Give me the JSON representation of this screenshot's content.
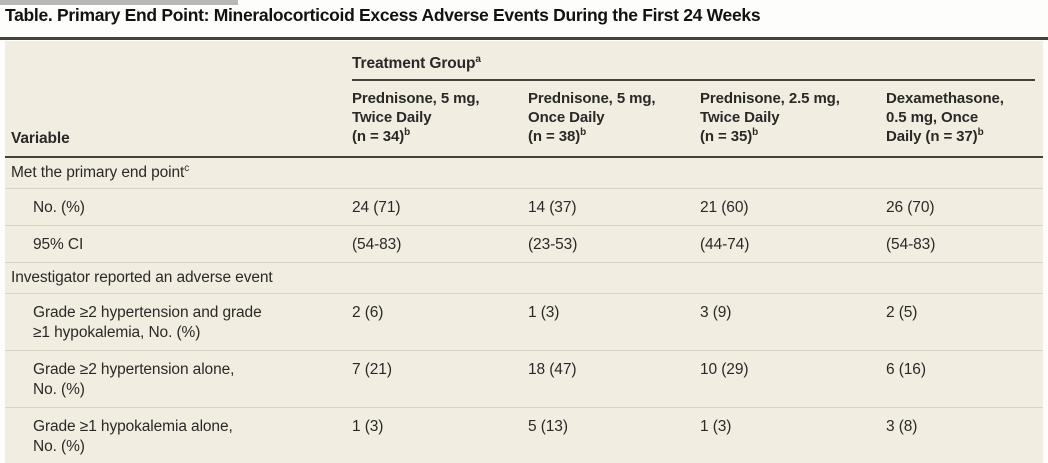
{
  "title": "Table. Primary End Point: Mineralocorticoid Excess Adverse Events During the First 24 Weeks",
  "table": {
    "variable_header": "Variable",
    "group_header": {
      "label": "Treatment Group",
      "superscript": "a"
    },
    "columns": [
      {
        "lines": [
          "Prednisone, 5 mg,",
          "Twice Daily",
          "(n = 34)"
        ],
        "superscript": "b"
      },
      {
        "lines": [
          "Prednisone, 5 mg,",
          "Once Daily",
          "(n = 38)"
        ],
        "superscript": "b"
      },
      {
        "lines": [
          "Prednisone, 2.5 mg,",
          "Twice Daily",
          "(n = 35)"
        ],
        "superscript": "b"
      },
      {
        "lines": [
          "Dexamethasone,",
          "0.5 mg, Once",
          "Daily (n = 37)"
        ],
        "superscript": "b"
      }
    ],
    "sections": [
      {
        "header": "Met the primary end point",
        "superscript": "c",
        "rows": [
          {
            "label_lines": [
              "No. (%)"
            ],
            "values": [
              "24 (71)",
              "14 (37)",
              "21 (60)",
              "26 (70)"
            ]
          },
          {
            "label_lines": [
              "95% CI"
            ],
            "values": [
              "(54-83)",
              "(23-53)",
              "(44-74)",
              "(54-83)"
            ]
          }
        ]
      },
      {
        "header": "Investigator reported an adverse event",
        "superscript": "",
        "rows": [
          {
            "label_lines": [
              "Grade ≥2 hypertension and grade",
              "≥1 hypokalemia, No. (%)"
            ],
            "values": [
              "2 (6)",
              "1 (3)",
              "3 (9)",
              "2 (5)"
            ]
          },
          {
            "label_lines": [
              "Grade ≥2 hypertension alone,",
              "No. (%)"
            ],
            "values": [
              "7 (21)",
              "18 (47)",
              "10 (29)",
              "6 (16)"
            ]
          },
          {
            "label_lines": [
              "Grade ≥1 hypokalemia alone,",
              "No. (%)"
            ],
            "values": [
              "1 (3)",
              "5 (13)",
              "1 (3)",
              "3 (8)"
            ]
          }
        ]
      }
    ]
  },
  "colors": {
    "page_bg": "#fdfdfb",
    "table_bg": "#f1eee1",
    "rule": "#44423b",
    "row_separator": "#d9d4c3",
    "text": "#2a2927",
    "title": "#121211"
  }
}
